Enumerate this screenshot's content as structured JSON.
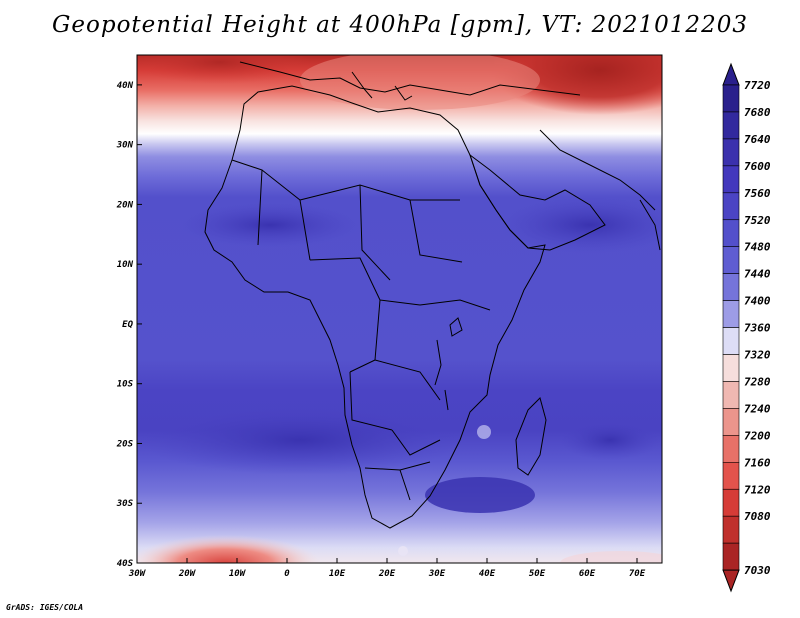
{
  "title": "Geopotential Height at 400hPa [gpm], VT: 2021012203",
  "credit": "GrADS: IGES/COLA",
  "chart_data": {
    "type": "heatmap",
    "variable": "Geopotential Height",
    "level": "400hPa",
    "units": "gpm",
    "valid_time": "2021012203",
    "lon_range": [
      -30,
      75
    ],
    "lat_range": [
      -40,
      45
    ],
    "x_ticks": [
      "30W",
      "20W",
      "10W",
      "0",
      "10E",
      "20E",
      "30E",
      "40E",
      "50E",
      "60E",
      "70E"
    ],
    "x_tick_values": [
      -30,
      -20,
      -10,
      0,
      10,
      20,
      30,
      40,
      50,
      60,
      70
    ],
    "y_ticks": [
      "40N",
      "30N",
      "20N",
      "10N",
      "EQ",
      "10S",
      "20S",
      "30S",
      "40S"
    ],
    "y_tick_values": [
      40,
      30,
      20,
      10,
      0,
      -10,
      -20,
      -30,
      -40
    ],
    "colorbar_levels": [
      7720,
      7680,
      7640,
      7600,
      7560,
      7520,
      7480,
      7440,
      7400,
      7360,
      7320,
      7280,
      7240,
      7200,
      7160,
      7120,
      7080,
      7030
    ],
    "colorbar_colors": [
      "#2a208c",
      "#32299e",
      "#3b31ad",
      "#4338bd",
      "#4b44c4",
      "#5350cb",
      "#5f5dd2",
      "#7574da",
      "#9d9ce6",
      "#ddddf6",
      "#f6dedc",
      "#f0b8b2",
      "#ec958c",
      "#e87168",
      "#e3534c",
      "#d63c37",
      "#c0302c",
      "#aa2424"
    ],
    "field_summary": {
      "north_africa_mediterranean_band": "7120-7360 gpm (red)",
      "sahara_and_tropics": "7520-7600 gpm (blue)",
      "southern_ocean_south_of_35S": "7360-7440 gpm"
    }
  }
}
